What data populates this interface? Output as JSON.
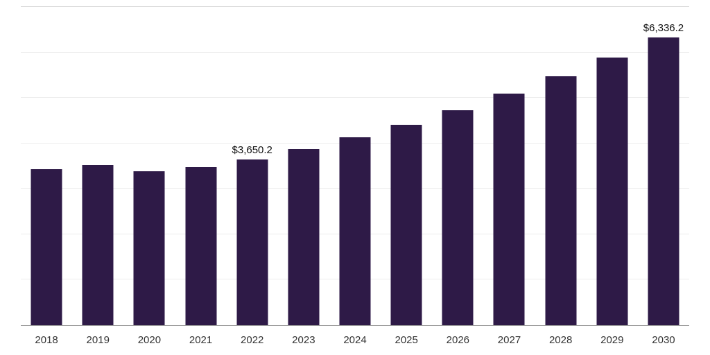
{
  "chart_data": {
    "type": "bar",
    "title": "",
    "xlabel": "",
    "ylabel": "",
    "categories": [
      "2018",
      "2019",
      "2020",
      "2021",
      "2022",
      "2023",
      "2024",
      "2025",
      "2026",
      "2027",
      "2028",
      "2029",
      "2030"
    ],
    "values": [
      3430,
      3530,
      3390,
      3470,
      3650.2,
      3880,
      4130,
      4410,
      4730,
      5090,
      5470,
      5890,
      6336.2
    ],
    "data_labels": {
      "2022": "$3,650.2",
      "2030": "$6,336.2"
    },
    "ylim": [
      0,
      7000
    ],
    "grid_step": 1000,
    "grid": true,
    "legend": false,
    "bar_color": "#2e1a47",
    "grid_color": "#ececec",
    "top_line_color": "#d9d9d9",
    "axis_line_color": "#9b9b9b",
    "label_color": "#333333",
    "data_label_color": "#111111"
  }
}
